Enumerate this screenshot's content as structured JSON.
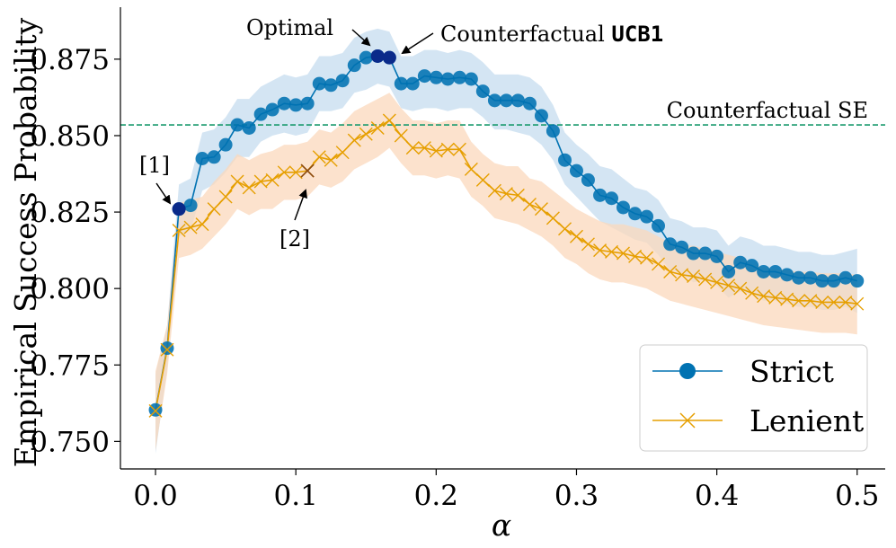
{
  "chart_data": {
    "type": "line",
    "xlabel": "α",
    "ylabel": "Empirical Success Probability",
    "xlim": [
      -0.025,
      0.52
    ],
    "ylim": [
      0.741,
      0.892
    ],
    "x_ticks": [
      0.0,
      0.1,
      0.2,
      0.3,
      0.4,
      0.5
    ],
    "x_tick_labels": [
      "0.0",
      "0.1",
      "0.2",
      "0.3",
      "0.4",
      "0.5"
    ],
    "y_ticks": [
      0.75,
      0.775,
      0.8,
      0.825,
      0.85,
      0.875
    ],
    "y_tick_labels": [
      "0.750",
      "0.775",
      "0.800",
      "0.825",
      "0.850",
      "0.875"
    ],
    "grid": false,
    "legend_position": "bottom-right",
    "series": [
      {
        "name": "Strict",
        "marker": "circle",
        "color": "#0072B2",
        "band_color": "#c6dcef",
        "x": [
          0,
          0.0083,
          0.0167,
          0.025,
          0.0333,
          0.0417,
          0.05,
          0.0583,
          0.0667,
          0.075,
          0.0833,
          0.0917,
          0.1,
          0.1083,
          0.1167,
          0.125,
          0.1333,
          0.1417,
          0.15,
          0.1583,
          0.1667,
          0.175,
          0.1833,
          0.1917,
          0.2,
          0.2083,
          0.2167,
          0.225,
          0.2333,
          0.2417,
          0.25,
          0.2583,
          0.2667,
          0.275,
          0.2833,
          0.2917,
          0.3,
          0.3083,
          0.3167,
          0.325,
          0.3333,
          0.3417,
          0.35,
          0.3583,
          0.3667,
          0.375,
          0.3833,
          0.3917,
          0.4,
          0.4083,
          0.4167,
          0.425,
          0.4333,
          0.4417,
          0.45,
          0.4583,
          0.4667,
          0.475,
          0.4833,
          0.4917,
          0.5
        ],
        "y": [
          0.7603,
          0.7805,
          0.826,
          0.8272,
          0.8425,
          0.843,
          0.847,
          0.8535,
          0.8525,
          0.857,
          0.8585,
          0.8605,
          0.86,
          0.8605,
          0.867,
          0.8665,
          0.868,
          0.873,
          0.8755,
          0.876,
          0.8755,
          0.867,
          0.867,
          0.8695,
          0.869,
          0.8685,
          0.869,
          0.8685,
          0.8645,
          0.8615,
          0.8615,
          0.8615,
          0.8605,
          0.8565,
          0.8515,
          0.842,
          0.8385,
          0.8355,
          0.8305,
          0.8295,
          0.8265,
          0.8245,
          0.8235,
          0.8205,
          0.8145,
          0.8135,
          0.8115,
          0.8115,
          0.8105,
          0.8055,
          0.8085,
          0.8075,
          0.8055,
          0.8055,
          0.8045,
          0.8035,
          0.8035,
          0.8025,
          0.8025,
          0.8035,
          0.8025
        ],
        "band_low": [
          0.746,
          0.7735,
          0.817,
          0.819,
          0.832,
          0.834,
          0.838,
          0.843,
          0.843,
          0.848,
          0.85,
          0.851,
          0.85,
          0.851,
          0.858,
          0.858,
          0.859,
          0.864,
          0.865,
          0.867,
          0.866,
          0.859,
          0.858,
          0.859,
          0.859,
          0.858,
          0.859,
          0.859,
          0.856,
          0.852,
          0.852,
          0.851,
          0.85,
          0.847,
          0.842,
          0.834,
          0.83,
          0.826,
          0.822,
          0.82,
          0.818,
          0.816,
          0.815,
          0.811,
          0.806,
          0.805,
          0.802,
          0.803,
          0.801,
          0.797,
          0.799,
          0.798,
          0.796,
          0.796,
          0.795,
          0.794,
          0.794,
          0.793,
          0.793,
          0.794,
          0.792
        ],
        "band_high": [
          0.772,
          0.788,
          0.834,
          0.836,
          0.851,
          0.852,
          0.856,
          0.862,
          0.862,
          0.866,
          0.868,
          0.87,
          0.869,
          0.87,
          0.876,
          0.876,
          0.877,
          0.882,
          0.884,
          0.885,
          0.884,
          0.876,
          0.876,
          0.878,
          0.878,
          0.877,
          0.878,
          0.877,
          0.874,
          0.87,
          0.87,
          0.87,
          0.869,
          0.866,
          0.86,
          0.851,
          0.847,
          0.844,
          0.84,
          0.839,
          0.836,
          0.833,
          0.832,
          0.829,
          0.823,
          0.822,
          0.82,
          0.82,
          0.819,
          0.814,
          0.817,
          0.816,
          0.814,
          0.814,
          0.813,
          0.812,
          0.812,
          0.811,
          0.811,
          0.812,
          0.813
        ]
      },
      {
        "name": "Lenient",
        "marker": "x",
        "color": "#E69F00",
        "band_color": "#fbd8bc",
        "x": [
          0,
          0.0083,
          0.0167,
          0.025,
          0.0333,
          0.0417,
          0.05,
          0.0583,
          0.0667,
          0.075,
          0.0833,
          0.0917,
          0.1,
          0.1083,
          0.1167,
          0.125,
          0.1333,
          0.1417,
          0.15,
          0.1583,
          0.1667,
          0.175,
          0.1833,
          0.1917,
          0.2,
          0.2083,
          0.2167,
          0.225,
          0.2333,
          0.2417,
          0.25,
          0.2583,
          0.2667,
          0.275,
          0.2833,
          0.2917,
          0.3,
          0.3083,
          0.3167,
          0.325,
          0.3333,
          0.3417,
          0.35,
          0.3583,
          0.3667,
          0.375,
          0.3833,
          0.3917,
          0.4,
          0.4083,
          0.4167,
          0.425,
          0.4333,
          0.4417,
          0.45,
          0.4583,
          0.4667,
          0.475,
          0.4833,
          0.4917,
          0.5
        ],
        "y": [
          0.76,
          0.78,
          0.819,
          0.82,
          0.821,
          0.826,
          0.83,
          0.835,
          0.833,
          0.835,
          0.8355,
          0.838,
          0.838,
          0.8385,
          0.843,
          0.842,
          0.8445,
          0.8485,
          0.8505,
          0.8525,
          0.855,
          0.85,
          0.846,
          0.846,
          0.845,
          0.8455,
          0.8455,
          0.839,
          0.8355,
          0.832,
          0.831,
          0.8305,
          0.8275,
          0.826,
          0.823,
          0.8195,
          0.817,
          0.8145,
          0.8125,
          0.812,
          0.8115,
          0.8105,
          0.81,
          0.808,
          0.8055,
          0.8045,
          0.804,
          0.803,
          0.802,
          0.801,
          0.8,
          0.7985,
          0.7975,
          0.797,
          0.7965,
          0.796,
          0.796,
          0.7955,
          0.7955,
          0.7955,
          0.795
        ],
        "band_low": [
          0.747,
          0.772,
          0.81,
          0.811,
          0.813,
          0.817,
          0.821,
          0.826,
          0.824,
          0.826,
          0.826,
          0.829,
          0.829,
          0.83,
          0.834,
          0.833,
          0.835,
          0.839,
          0.841,
          0.843,
          0.846,
          0.841,
          0.837,
          0.837,
          0.836,
          0.837,
          0.836,
          0.83,
          0.827,
          0.823,
          0.822,
          0.821,
          0.819,
          0.817,
          0.814,
          0.81,
          0.808,
          0.805,
          0.803,
          0.802,
          0.802,
          0.801,
          0.8,
          0.798,
          0.796,
          0.795,
          0.794,
          0.793,
          0.792,
          0.791,
          0.79,
          0.789,
          0.788,
          0.7875,
          0.787,
          0.7865,
          0.786,
          0.7855,
          0.7855,
          0.7855,
          0.785
        ],
        "band_high": [
          0.773,
          0.788,
          0.828,
          0.829,
          0.83,
          0.835,
          0.839,
          0.844,
          0.842,
          0.844,
          0.845,
          0.847,
          0.847,
          0.848,
          0.852,
          0.851,
          0.854,
          0.858,
          0.86,
          0.862,
          0.864,
          0.859,
          0.855,
          0.855,
          0.854,
          0.855,
          0.855,
          0.848,
          0.844,
          0.841,
          0.84,
          0.84,
          0.836,
          0.835,
          0.832,
          0.829,
          0.826,
          0.824,
          0.822,
          0.821,
          0.821,
          0.82,
          0.819,
          0.817,
          0.815,
          0.814,
          0.814,
          0.813,
          0.812,
          0.811,
          0.81,
          0.808,
          0.807,
          0.8065,
          0.806,
          0.8055,
          0.8055,
          0.805,
          0.805,
          0.805,
          0.8045
        ]
      }
    ],
    "reference_line": {
      "label": "Counterfactual SE",
      "y": 0.8535,
      "color": "#1a9a6e",
      "style": "dashed"
    },
    "highlight_points": [
      {
        "series": "Strict",
        "x": 0.0167,
        "y": 0.826,
        "color": "#0a2a8a"
      },
      {
        "series": "Strict",
        "x": 0.1583,
        "y": 0.876,
        "color": "#0a2a8a"
      },
      {
        "series": "Strict",
        "x": 0.1667,
        "y": 0.8755,
        "color": "#0a2a8a"
      },
      {
        "series": "Lenient",
        "x": 0.1083,
        "y": 0.8385,
        "color": "#8b4a10"
      }
    ],
    "annotations": {
      "optimal": {
        "text": "Optimal",
        "target": [
          0.1583,
          0.876
        ]
      },
      "counterfactual_ucb": {
        "text_prefix": "Counterfactual ",
        "text_code": "UCB1",
        "target": [
          0.1667,
          0.8755
        ]
      },
      "ref1": {
        "text": "[1]",
        "target": [
          0.0167,
          0.826
        ]
      },
      "ref2": {
        "text": "[2]",
        "target": [
          0.1083,
          0.8385
        ]
      }
    }
  }
}
